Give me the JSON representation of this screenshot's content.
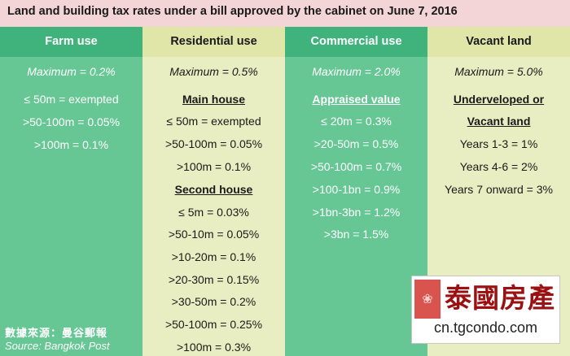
{
  "title": "Land and building tax rates under a bill approved by the cabinet on June 7, 2016",
  "columns": [
    {
      "header": "Farm use",
      "maximum": "Maximum = 0.2%",
      "items": [
        "≤ 50m = exempted",
        ">50-100m = 0.05%",
        ">100m = 0.1%"
      ]
    },
    {
      "header": "Residential use",
      "maximum": "Maximum = 0.5%",
      "main_house_title": "Main house",
      "main_house": [
        "≤ 50m = exempted",
        ">50-100m = 0.05%",
        ">100m = 0.1%"
      ],
      "second_house_title": "Second house",
      "second_house": [
        "≤ 5m = 0.03%",
        ">50-10m = 0.05%",
        ">10-20m = 0.1%",
        ">20-30m = 0.15%",
        ">30-50m =  0.2%",
        ">50-100m = 0.25%",
        ">100m = 0.3%"
      ]
    },
    {
      "header": "Commercial use",
      "maximum": "Maximum = 2.0%",
      "subtitle": "Appraised value",
      "items": [
        "≤ 20m = 0.3%",
        ">20-50m = 0.5%",
        ">50-100m = 0.7%",
        ">100-1bn = 0.9%",
        ">1bn-3bn = 1.2%",
        ">3bn = 1.5%"
      ]
    },
    {
      "header": "Vacant land",
      "maximum": "Maximum = 5.0%",
      "subtitle_line1": "Underveloped or",
      "subtitle_line2": "Vacant land",
      "items": [
        "Years 1-3 = 1%",
        "Years 4-6 = 2%",
        "Years 7 onward = 3%"
      ]
    }
  ],
  "source": {
    "chinese": "數據來源：曼谷郵報",
    "english": "Source: Bangkok Post"
  },
  "watermark": {
    "brand": "泰國房產",
    "url": "cn.tgcondo.com"
  },
  "colors": {
    "title_bg": "#f3d5d8",
    "green": "#66c795",
    "green_header": "#3fb37b",
    "cream": "#e9eec2",
    "cream_header": "#dfe6a8",
    "seal_red": "#d9534f",
    "brand_red": "#9b1010"
  }
}
